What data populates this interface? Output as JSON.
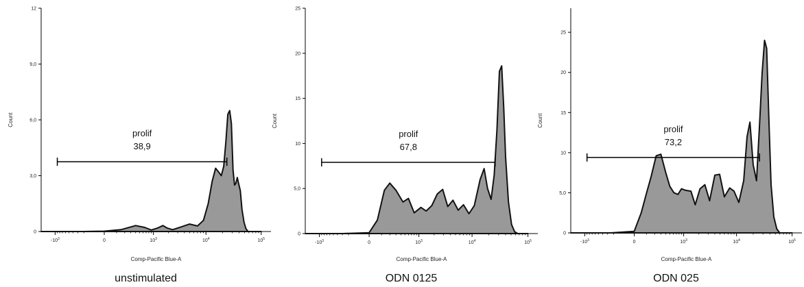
{
  "chart_data": [
    {
      "type": "area",
      "caption": "unstimulated",
      "xlabel": "Comp-Pacific Blue-A",
      "ylabel": "Count",
      "y_ticks": [
        "0",
        "3,0",
        "6,0",
        "9,0",
        "12"
      ],
      "y_tick_values": [
        0,
        3,
        6,
        9,
        12
      ],
      "ylim": [
        0,
        12
      ],
      "x_scale": "biexponential",
      "x_ticks": [
        "-10³",
        "0",
        "10³",
        "10⁴",
        "10⁵"
      ],
      "gate": {
        "name": "prolif",
        "value": "38,9",
        "x_range": [
          -900,
          24000
        ],
        "y": 3.75
      },
      "x": [
        -1900,
        -1000,
        -500,
        -200,
        0,
        150,
        400,
        650,
        900,
        1200,
        1550,
        1900,
        2400,
        3500,
        5000,
        7000,
        9000,
        11000,
        13000,
        15000,
        17000,
        19000,
        21000,
        23000,
        25000,
        27000,
        29000,
        31000,
        33000,
        35000,
        37000,
        39000,
        42000,
        45000,
        49000,
        53000,
        58000,
        63000,
        68000,
        75000,
        85000,
        100000
      ],
      "y": [
        0,
        0,
        0,
        0,
        0.02,
        0.1,
        0.32,
        0.22,
        0.08,
        0.18,
        0.32,
        0.18,
        0.1,
        0.25,
        0.4,
        0.3,
        0.6,
        1.5,
        2.7,
        3.4,
        3.2,
        3.0,
        3.5,
        4.8,
        6.3,
        6.5,
        5.8,
        3.3,
        2.5,
        2.6,
        2.9,
        2.6,
        2.2,
        1.2,
        0.5,
        0.15,
        0,
        0,
        0,
        0,
        0,
        0
      ]
    },
    {
      "type": "area",
      "caption": "ODN 0125",
      "xlabel": "Comp-Pacific Blue-A",
      "ylabel": "Count",
      "y_ticks": [
        "0",
        "5,0",
        "10",
        "15",
        "20",
        "25"
      ],
      "y_tick_values": [
        0,
        5,
        10,
        15,
        20,
        25
      ],
      "ylim": [
        0,
        25
      ],
      "x_scale": "biexponential",
      "x_ticks": [
        "-10³",
        "0",
        "10³",
        "10⁴",
        "10⁵"
      ],
      "gate": {
        "name": "prolif",
        "value": "67,8",
        "x_range": [
          -900,
          26000
        ],
        "y": 7.9
      },
      "x": [
        -1900,
        -1000,
        -300,
        0,
        60,
        130,
        200,
        300,
        450,
        600,
        800,
        1100,
        1400,
        1800,
        2300,
        2900,
        3600,
        4500,
        5600,
        7000,
        8800,
        11000,
        14000,
        16500,
        19000,
        22000,
        25000,
        28000,
        31000,
        34000,
        37000,
        40000,
        45000,
        51000,
        58000,
        66000,
        78000,
        100000
      ],
      "y": [
        0,
        0,
        0,
        0.1,
        1.5,
        4.8,
        5.6,
        4.8,
        3.5,
        3.9,
        2.3,
        2.9,
        2.5,
        3.1,
        4.4,
        4.9,
        3.0,
        3.7,
        2.6,
        3.2,
        2.2,
        3.1,
        6.0,
        7.2,
        5.0,
        3.8,
        6.5,
        11.5,
        18.0,
        18.6,
        14.0,
        8.5,
        3.5,
        1.0,
        0.2,
        0,
        0,
        0
      ]
    },
    {
      "type": "area",
      "caption": "ODN 025",
      "xlabel": "Comp-Pacific Blue-A",
      "ylabel": "Count",
      "y_ticks": [
        "0",
        "5,0",
        "10",
        "15",
        "20",
        "25"
      ],
      "y_tick_values": [
        0,
        5,
        10,
        15,
        20,
        25
      ],
      "ylim": [
        0,
        28
      ],
      "x_scale": "biexponential",
      "x_ticks": [
        "-10³",
        "0",
        "10³",
        "10⁴",
        "10⁵"
      ],
      "gate": {
        "name": "prolif",
        "value": "73,2",
        "x_range": [
          -900,
          26000
        ],
        "y": 9.4
      },
      "x": [
        -1900,
        -1000,
        -250,
        0,
        50,
        100,
        150,
        220,
        300,
        400,
        500,
        620,
        760,
        900,
        1100,
        1400,
        1700,
        2100,
        2600,
        3200,
        4000,
        4900,
        6000,
        7500,
        9000,
        11000,
        13500,
        15500,
        17500,
        20000,
        23000,
        26000,
        29000,
        32000,
        35000,
        38000,
        42000,
        47000,
        53000,
        60000,
        70000,
        100000
      ],
      "y": [
        0,
        0,
        0,
        0.2,
        2.5,
        5.0,
        7.0,
        9.6,
        9.8,
        7.5,
        5.8,
        5.0,
        4.8,
        5.5,
        5.3,
        5.2,
        3.5,
        5.5,
        6.0,
        4.0,
        7.2,
        7.3,
        4.5,
        5.6,
        5.2,
        3.8,
        6.5,
        12.0,
        13.8,
        8.5,
        6.5,
        13.5,
        20.0,
        24.0,
        23.0,
        15.0,
        6.0,
        2.0,
        0.5,
        0,
        0,
        0
      ]
    }
  ]
}
